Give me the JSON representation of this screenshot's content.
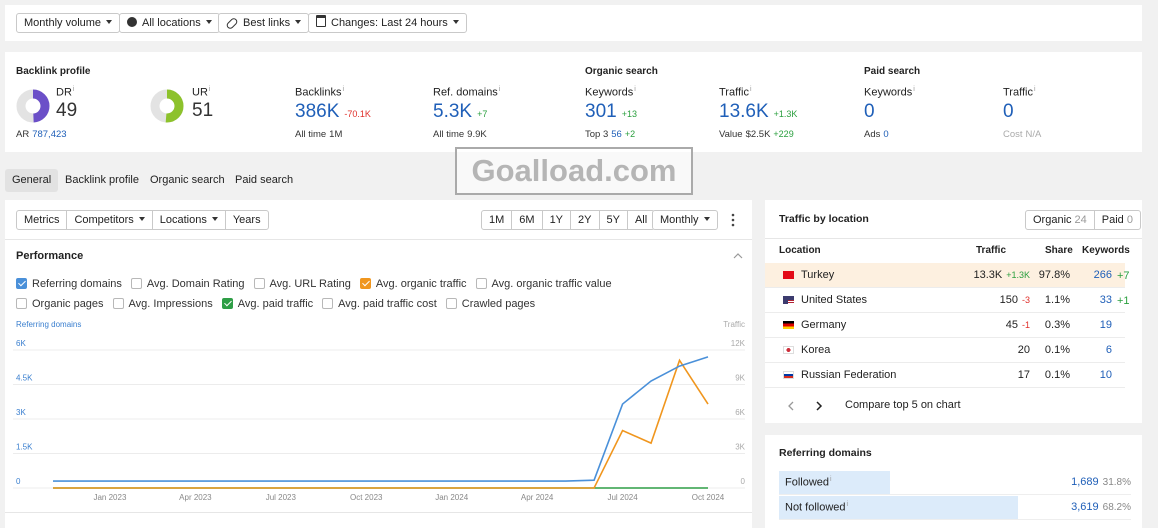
{
  "toolbar": [
    "Monthly volume",
    "All locations",
    "Best links",
    "Changes: Last 24 hours"
  ],
  "watermark": "Goalload.com",
  "overview": {
    "backlink_profile": {
      "title": "Backlink profile",
      "dr": {
        "label": "DR",
        "value": 49,
        "color": "#6b4fc8"
      },
      "ur": {
        "label": "UR",
        "value": 51,
        "color": "#8dc22c"
      },
      "ar_label": "AR",
      "ar_value": "787,423",
      "backlinks": {
        "label": "Backlinks",
        "value": "386K",
        "change": "-70.1K",
        "sub_label": "All time",
        "sub_value": "1M"
      },
      "ref_domains": {
        "label": "Ref. domains",
        "value": "5.3K",
        "change": "+7",
        "sub_label": "All time",
        "sub_value": "9.9K"
      }
    },
    "organic_search": {
      "title": "Organic search",
      "keywords": {
        "label": "Keywords",
        "value": "301",
        "change": "+13",
        "sub_label": "Top 3",
        "sub_value": "56",
        "sub_change": "+2"
      },
      "traffic": {
        "label": "Traffic",
        "value": "13.6K",
        "change": "+1.3K",
        "sub_label": "Value",
        "sub_value": "$2.5K",
        "sub_change": "+229"
      }
    },
    "paid_search": {
      "title": "Paid search",
      "keywords": {
        "label": "Keywords",
        "value": "0",
        "sub_label": "Ads",
        "sub_value": "0"
      },
      "traffic": {
        "label": "Traffic",
        "value": "0",
        "sub_label": "Cost",
        "sub_value": "N/A"
      }
    }
  },
  "tabs": [
    "General",
    "Backlink profile",
    "Organic search",
    "Paid search"
  ],
  "performance": {
    "modes": [
      "Metrics",
      "Competitors",
      "Locations",
      "Years"
    ],
    "ranges": [
      "1M",
      "6M",
      "1Y",
      "2Y",
      "5Y",
      "All"
    ],
    "interval": "Monthly",
    "title": "Performance",
    "metrics": [
      {
        "name": "Referring domains",
        "checked": true,
        "color": "#4a90d9"
      },
      {
        "name": "Avg. Domain Rating",
        "checked": false
      },
      {
        "name": "Avg. URL Rating",
        "checked": false
      },
      {
        "name": "Avg. organic traffic",
        "checked": true,
        "color": "#f0961e"
      },
      {
        "name": "Avg. organic traffic value",
        "checked": false
      },
      {
        "name": "Organic pages",
        "checked": false
      },
      {
        "name": "Avg. Impressions",
        "checked": false
      },
      {
        "name": "Avg. paid traffic",
        "checked": true,
        "color": "#2e9e46"
      },
      {
        "name": "Avg. paid traffic cost",
        "checked": false
      },
      {
        "name": "Crawled pages",
        "checked": false
      }
    ],
    "chart": {
      "type": "line",
      "y_label": "Referring domains",
      "y2_label": "Traffic",
      "categories": [
        null,
        null,
        "Jan 2023",
        null,
        null,
        "Apr 2023",
        null,
        null,
        "Jul 2023",
        null,
        null,
        "Oct 2023",
        null,
        null,
        "Jan 2024",
        null,
        null,
        "Apr 2024",
        null,
        null,
        "Jul 2024",
        null,
        null,
        "Oct 2024"
      ],
      "ylim": [
        0,
        6000
      ],
      "yticks": [
        0,
        {
          "value": 1500,
          "label": "1.5K"
        },
        {
          "value": 3000,
          "label": "3K"
        },
        {
          "value": 4500,
          "label": "4.5K"
        },
        {
          "value": 6000,
          "label": "6K"
        }
      ],
      "y2lim": [
        0,
        12000
      ],
      "y2ticks": [
        0,
        {
          "value": 3000,
          "label": "3K"
        },
        {
          "value": 6000,
          "label": "6K"
        },
        {
          "value": 9000,
          "label": "9K"
        },
        {
          "value": 12000,
          "label": "12K"
        }
      ],
      "grid": true,
      "series": [
        {
          "name": "Avg. paid traffic",
          "color": "#2e9e46",
          "axis": "y2",
          "values": [
            0,
            0,
            0,
            0,
            0,
            0,
            0,
            0,
            0,
            0,
            0,
            0,
            0,
            0,
            0,
            0,
            0,
            0,
            0,
            0,
            0,
            0,
            0,
            0
          ]
        },
        {
          "name": "Avg. organic traffic",
          "color": "#f0961e",
          "axis": "y2",
          "values": [
            0,
            0,
            0,
            0,
            0,
            0,
            0,
            0,
            0,
            0,
            0,
            0,
            0,
            0,
            0,
            0,
            0,
            0,
            0,
            0,
            5000,
            3900,
            11100,
            7300
          ]
        },
        {
          "name": "Referring domains",
          "color": "#4a90d9",
          "values": [
            300,
            300,
            300,
            300,
            300,
            300,
            300,
            300,
            300,
            300,
            300,
            300,
            300,
            300,
            300,
            300,
            300,
            300,
            300,
            340,
            3650,
            4650,
            5300,
            5700
          ]
        }
      ]
    }
  },
  "traffic_by_location": {
    "title": "Traffic by location",
    "organic_label": "Organic",
    "organic_count": "24",
    "paid_label": "Paid",
    "paid_count": "0",
    "columns": [
      "Location",
      "Traffic",
      "Share",
      "Keywords"
    ],
    "rows": [
      {
        "location": "Turkey",
        "traffic": "13.3K",
        "traffic_change": "+1.3K",
        "share": "97.8%",
        "keywords": "266",
        "keywords_change": "+7",
        "highlighted": true
      },
      {
        "location": "United States",
        "traffic": "150",
        "traffic_change": "-3",
        "share": "1.1%",
        "keywords": "33",
        "keywords_change": "+1"
      },
      {
        "location": "Germany",
        "traffic": "45",
        "traffic_change": "-1",
        "share": "0.3%",
        "keywords": "19"
      },
      {
        "location": "Korea",
        "traffic": "20",
        "share": "0.1%",
        "keywords": "6"
      },
      {
        "location": "Russian Federation",
        "traffic": "17",
        "share": "0.1%",
        "keywords": "10"
      }
    ],
    "compare": "Compare top 5 on chart"
  },
  "referring_domains": {
    "title": "Referring domains",
    "rows": [
      {
        "label": "Followed",
        "count": "1,689",
        "share": 31.8,
        "share_label": "31.8%"
      },
      {
        "label": "Not followed",
        "count": "3,619",
        "share": 68.2,
        "share_label": "68.2%"
      }
    ]
  }
}
